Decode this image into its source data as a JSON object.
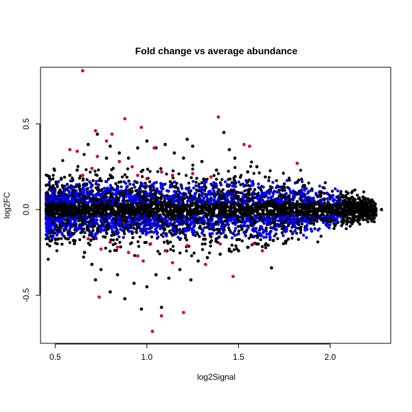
{
  "chart_data": {
    "type": "scatter",
    "title": "Fold change vs average abundance",
    "xlabel": "log2Signal",
    "ylabel": "log2FC",
    "xlim": [
      0.42,
      2.33
    ],
    "ylim": [
      -0.78,
      0.83
    ],
    "xticks": [
      0.5,
      1.0,
      1.5,
      2.0
    ],
    "xtick_labels": [
      "0.5",
      "1.0",
      "1.5",
      "2.0"
    ],
    "yticks": [
      -0.5,
      0.0,
      0.5
    ],
    "ytick_labels": [
      "-0.5",
      "0.0",
      "0.5"
    ],
    "grid": false,
    "legend": "none",
    "colors": {
      "background": "#000000",
      "highlight_blue": "#0000ff",
      "highlight_red": "#dd0020"
    },
    "series": [
      {
        "color": "#000000",
        "points": [
          [
            2.28,
            0.0
          ],
          [
            2.22,
            0.02
          ],
          [
            2.2,
            -0.01
          ],
          [
            2.15,
            0.03
          ],
          [
            2.12,
            -0.02
          ],
          [
            2.05,
            0.06
          ],
          [
            2.0,
            0.08
          ],
          [
            1.95,
            0.1
          ],
          [
            1.9,
            0.12
          ],
          [
            1.86,
            0.14
          ],
          [
            1.82,
            0.16
          ],
          [
            1.75,
            0.15
          ],
          [
            1.69,
            -0.18
          ],
          [
            1.65,
            -0.2
          ],
          [
            1.6,
            -0.2
          ],
          [
            1.55,
            -0.22
          ],
          [
            1.5,
            -0.24
          ],
          [
            1.45,
            -0.24
          ],
          [
            1.4,
            -0.26
          ],
          [
            1.42,
            0.45
          ],
          [
            1.38,
            0.23
          ],
          [
            1.3,
            0.28
          ],
          [
            1.25,
            0.37
          ],
          [
            1.22,
            0.41
          ],
          [
            1.2,
            0.3
          ],
          [
            1.15,
            0.33
          ],
          [
            1.1,
            0.38
          ],
          [
            1.05,
            0.36
          ],
          [
            1.0,
            0.4
          ],
          [
            0.95,
            0.36
          ],
          [
            0.9,
            0.3
          ],
          [
            0.85,
            0.33
          ],
          [
            0.8,
            0.37
          ],
          [
            0.78,
            0.3
          ],
          [
            0.73,
            0.44
          ],
          [
            0.68,
            0.38
          ],
          [
            0.62,
            0.23
          ],
          [
            0.58,
            0.2
          ],
          [
            0.52,
            0.1
          ],
          [
            0.47,
            0.02
          ],
          [
            0.47,
            -0.02
          ],
          [
            0.52,
            -0.12
          ],
          [
            0.6,
            -0.18
          ],
          [
            0.66,
            -0.25
          ],
          [
            0.7,
            -0.32
          ],
          [
            0.72,
            -0.41
          ],
          [
            0.75,
            -0.35
          ],
          [
            0.8,
            -0.48
          ],
          [
            0.84,
            -0.38
          ],
          [
            0.88,
            -0.52
          ],
          [
            0.93,
            -0.43
          ],
          [
            0.97,
            -0.58
          ],
          [
            1.0,
            -0.45
          ],
          [
            1.05,
            -0.38
          ],
          [
            1.08,
            -0.57
          ],
          [
            1.12,
            -0.4
          ],
          [
            1.18,
            -0.35
          ],
          [
            1.24,
            -0.41
          ],
          [
            1.28,
            -0.3
          ],
          [
            1.33,
            -0.28
          ],
          [
            1.68,
            -0.34
          ],
          [
            1.6,
            0.25
          ],
          [
            1.55,
            0.22
          ],
          [
            1.48,
            0.3
          ],
          [
            1.45,
            0.35
          ]
        ]
      },
      {
        "color": "#dd0020",
        "points": [
          [
            0.65,
            0.81
          ],
          [
            0.88,
            0.53
          ],
          [
            0.97,
            0.48
          ],
          [
            0.72,
            0.46
          ],
          [
            0.81,
            0.44
          ],
          [
            0.78,
            0.4
          ],
          [
            1.39,
            0.54
          ],
          [
            1.53,
            0.38
          ],
          [
            1.56,
            0.37
          ],
          [
            0.58,
            0.35
          ],
          [
            0.62,
            0.34
          ],
          [
            0.73,
            0.31
          ],
          [
            0.85,
            0.28
          ],
          [
            0.92,
            0.25
          ],
          [
            1.04,
            0.36
          ],
          [
            1.08,
            0.22
          ],
          [
            1.14,
            0.2
          ],
          [
            1.25,
            0.21
          ],
          [
            1.35,
            0.19
          ],
          [
            1.82,
            0.27
          ],
          [
            0.65,
            0.2
          ],
          [
            0.7,
            0.24
          ],
          [
            0.95,
            0.2
          ],
          [
            1.0,
            0.18
          ],
          [
            0.74,
            -0.51
          ],
          [
            1.03,
            -0.71
          ],
          [
            1.08,
            -0.62
          ],
          [
            1.2,
            -0.6
          ],
          [
            1.47,
            -0.39
          ],
          [
            1.32,
            -0.32
          ],
          [
            1.14,
            -0.31
          ],
          [
            0.98,
            -0.3
          ],
          [
            0.9,
            -0.25
          ],
          [
            0.84,
            -0.22
          ],
          [
            0.8,
            -0.19
          ],
          [
            0.75,
            -0.23
          ],
          [
            1.02,
            -0.2
          ],
          [
            1.1,
            -0.24
          ],
          [
            1.22,
            -0.21
          ],
          [
            1.4,
            -0.2
          ],
          [
            1.63,
            -0.24
          ],
          [
            1.58,
            -0.2
          ],
          [
            0.68,
            -0.17
          ],
          [
            0.95,
            -0.27
          ]
        ]
      }
    ]
  }
}
